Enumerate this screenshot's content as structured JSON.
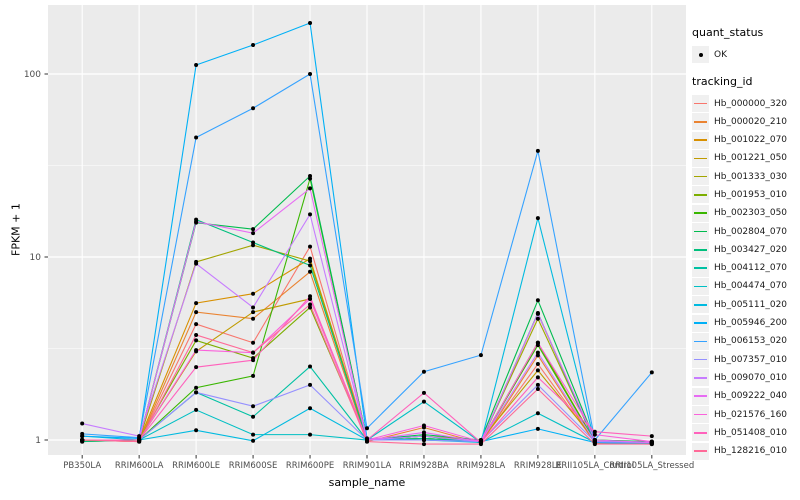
{
  "figure": {
    "background": "#FFFFFF"
  },
  "legend": {
    "quant_status": {
      "title": "quant_status",
      "items": [
        {
          "label": "OK",
          "marker": "point-icon"
        }
      ]
    },
    "tracking_id": {
      "title": "tracking_id"
    }
  },
  "colors": {
    "panel_bg": "#EBEBEB",
    "grid_major": "#FFFFFF",
    "grid_minor": "#FFFFFF",
    "tick": "#333333",
    "axis_label": "#4D4D4D",
    "axis_title": "#000000",
    "point": "#000000",
    "legend_key_bg": "#F0F0F0"
  },
  "chart_data": {
    "type": "line",
    "title": "",
    "xlabel": "sample_name",
    "ylabel": "FPKM + 1",
    "y_scale": "log10",
    "ylim": [
      0.83,
      235
    ],
    "y_major_ticks": [
      1,
      10,
      100
    ],
    "y_major_tick_labels": [
      "1",
      "10",
      "100"
    ],
    "y_minor_gridlines": [
      3.1623,
      31.623
    ],
    "grid": true,
    "legend_position": "right",
    "point_marker": "black-dot",
    "categories": [
      "PB350LA",
      "RRIM600LA",
      "RRIM600LE",
      "RRIM600SE",
      "RRIM600PE",
      "RRIM901LA",
      "RRIM928BA",
      "RRIM928LA",
      "RRIM928LE",
      "RRII105LA_Control",
      "RRII105LA_Stressed"
    ],
    "series": [
      {
        "name": "Hb_000000_320",
        "color": "#F8766D",
        "values": [
          1.0,
          0.98,
          4.3,
          3.4,
          11.4,
          1.0,
          1.05,
          0.97,
          2.6,
          0.97,
          0.96
        ]
      },
      {
        "name": "Hb_000020_210",
        "color": "#EA8331",
        "values": [
          1.0,
          0.98,
          5.0,
          4.6,
          8.3,
          0.98,
          1.17,
          0.96,
          2.9,
          0.96,
          0.95
        ]
      },
      {
        "name": "Hb_001022_070",
        "color": "#D89000",
        "values": [
          0.98,
          1.0,
          5.6,
          6.3,
          9.8,
          1.0,
          1.02,
          0.98,
          3.4,
          0.98,
          0.97
        ]
      },
      {
        "name": "Hb_001221_050",
        "color": "#C09B00",
        "values": [
          1.0,
          1.0,
          3.05,
          5.0,
          5.9,
          1.0,
          1.05,
          1.0,
          2.4,
          1.0,
          0.98
        ]
      },
      {
        "name": "Hb_001333_030",
        "color": "#A3A500",
        "values": [
          1.0,
          1.0,
          9.4,
          11.6,
          9.5,
          1.0,
          1.0,
          0.98,
          4.6,
          0.98,
          0.97
        ]
      },
      {
        "name": "Hb_001953_010",
        "color": "#7CAE00",
        "values": [
          1.0,
          1.0,
          3.5,
          2.8,
          5.3,
          1.0,
          1.02,
          0.98,
          3.4,
          0.98,
          0.97
        ]
      },
      {
        "name": "Hb_002303_050",
        "color": "#39B600",
        "values": [
          1.0,
          1.0,
          1.93,
          2.24,
          26.8,
          1.0,
          1.05,
          0.98,
          3.3,
          0.98,
          0.97
        ]
      },
      {
        "name": "Hb_002804_070",
        "color": "#00BB4E",
        "values": [
          1.0,
          1.0,
          15.4,
          14.2,
          27.7,
          1.0,
          1.07,
          1.0,
          5.8,
          1.0,
          0.98
        ]
      },
      {
        "name": "Hb_003427_020",
        "color": "#00BF7D",
        "values": [
          0.98,
          1.0,
          16.0,
          12.0,
          9.0,
          1.0,
          1.02,
          0.98,
          4.9,
          0.98,
          0.97
        ]
      },
      {
        "name": "Hb_004112_070",
        "color": "#00C1A3",
        "values": [
          1.0,
          1.0,
          1.82,
          1.34,
          2.52,
          1.0,
          1.05,
          0.97,
          4.94,
          0.97,
          0.96
        ]
      },
      {
        "name": "Hb_004474_070",
        "color": "#00BFC4",
        "values": [
          1.0,
          1.0,
          1.46,
          1.07,
          1.07,
          1.0,
          1.62,
          0.97,
          1.4,
          0.97,
          0.96
        ]
      },
      {
        "name": "Hb_005111_020",
        "color": "#00BAE0",
        "values": [
          1.05,
          1.0,
          1.13,
          0.99,
          1.49,
          1.0,
          1.0,
          0.97,
          16.3,
          0.97,
          0.96
        ]
      },
      {
        "name": "Hb_005946_200",
        "color": "#00B0F6",
        "values": [
          1.05,
          1.02,
          112,
          144,
          190,
          1.02,
          1.0,
          0.98,
          1.15,
          0.97,
          0.97
        ]
      },
      {
        "name": "Hb_006153_020",
        "color": "#35A2FF",
        "values": [
          1.08,
          1.03,
          45,
          65,
          100,
          1.16,
          2.36,
          2.91,
          38,
          1.0,
          2.34
        ]
      },
      {
        "name": "Hb_007357_010",
        "color": "#9590FF",
        "values": [
          1.0,
          1.0,
          1.82,
          1.53,
          2.0,
          1.0,
          1.0,
          0.98,
          2.0,
          0.98,
          0.97
        ]
      },
      {
        "name": "Hb_009070_010",
        "color": "#C77CFF",
        "values": [
          1.23,
          1.05,
          9.2,
          5.3,
          17.1,
          1.0,
          1.05,
          0.98,
          3.0,
          0.98,
          0.97
        ]
      },
      {
        "name": "Hb_009222_040",
        "color": "#E76BF3",
        "values": [
          1.0,
          1.0,
          15.6,
          13.5,
          23.7,
          1.0,
          1.1,
          0.98,
          4.9,
          1.0,
          0.97
        ]
      },
      {
        "name": "Hb_021576_160",
        "color": "#FA62DB",
        "values": [
          1.0,
          1.0,
          3.1,
          3.0,
          5.9,
          1.0,
          1.2,
          0.98,
          3.4,
          1.07,
          0.98
        ]
      },
      {
        "name": "Hb_051408_010",
        "color": "#FF62BC",
        "values": [
          1.0,
          1.0,
          2.5,
          2.73,
          6.1,
          1.0,
          1.81,
          0.97,
          2.2,
          1.11,
          1.05
        ]
      },
      {
        "name": "Hb_128216_010",
        "color": "#FF6A98",
        "values": [
          1.0,
          0.98,
          3.75,
          3.0,
          5.5,
          0.98,
          0.95,
          0.95,
          1.9,
          0.95,
          0.95
        ]
      }
    ]
  }
}
